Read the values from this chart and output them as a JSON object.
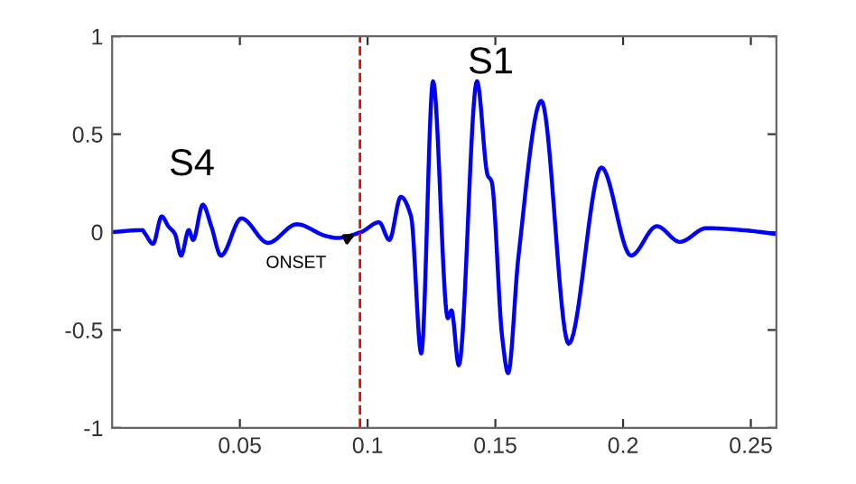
{
  "chart_data": {
    "type": "line",
    "xlim": [
      0,
      0.26
    ],
    "ylim": [
      -1,
      1
    ],
    "xticks": [
      0.05,
      0.1,
      0.15,
      0.2,
      0.25
    ],
    "yticks": [
      -1,
      -0.5,
      0,
      0.5,
      1
    ],
    "grid": false,
    "legend": false,
    "marker": "none",
    "line_style": "solid",
    "series": [
      {
        "color": "#0000ff",
        "x": [
          0,
          0.0118,
          0.013,
          0.016,
          0.0194,
          0.022,
          0.0246,
          0.027,
          0.03,
          0.0317,
          0.0355,
          0.0388,
          0.0426,
          0.0506,
          0.061,
          0.0723,
          0.0837,
          0.088,
          0.0974,
          0.1045,
          0.1085,
          0.113,
          0.117,
          0.121,
          0.1256,
          0.1314,
          0.1328,
          0.1357,
          0.1428,
          0.147,
          0.1485,
          0.1527,
          0.155,
          0.159,
          0.168,
          0.1787,
          0.1915,
          0.2031,
          0.2132,
          0.2222,
          0.2326,
          0.2468,
          0.26
        ],
        "values": [
          0,
          0.01,
          -0.01,
          -0.06,
          0.08,
          0.03,
          -0.01,
          -0.12,
          0.01,
          -0.04,
          0.14,
          0.03,
          -0.12,
          0.07,
          -0.055,
          0.04,
          -0.02,
          -0.03,
          0,
          0.05,
          -0.04,
          0.18,
          0.08,
          -0.62,
          0.77,
          -0.44,
          -0.4,
          -0.68,
          0.77,
          0.29,
          0.26,
          -0.54,
          -0.72,
          -0.13,
          0.67,
          -0.57,
          0.33,
          -0.12,
          0.03,
          -0.05,
          0.02,
          0.01,
          -0.01
        ]
      }
    ],
    "ref_lines": [
      {
        "axis": "x",
        "value": 0.097,
        "color": "#ff0000",
        "line_style": "dashed"
      }
    ],
    "annotations": [
      "S4",
      "S1",
      {
        "text": "ONSET",
        "x": 0.097,
        "y": 0
      }
    ]
  }
}
